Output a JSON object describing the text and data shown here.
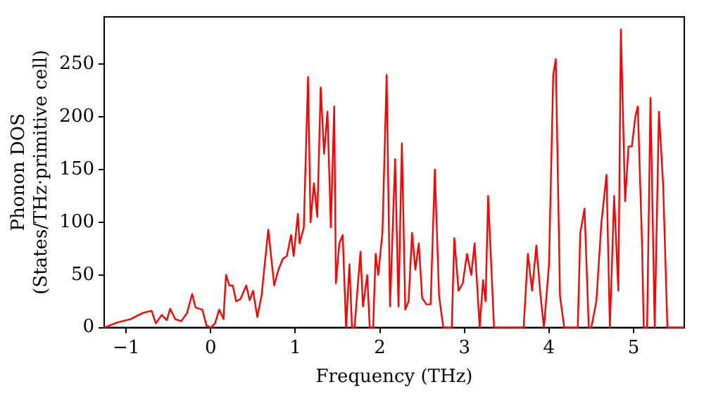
{
  "chart_data": {
    "type": "line",
    "xlabel": "Frequency (THz)",
    "ylabel": "Phonon DOS\n(States/THz·primitive cell)",
    "xlim": [
      -1.26,
      5.6
    ],
    "ylim": [
      0,
      295
    ],
    "xticks": [
      -1,
      0,
      1,
      2,
      3,
      4,
      5
    ],
    "yticks": [
      0,
      50,
      100,
      150,
      200,
      250
    ],
    "grid": false,
    "legend": false,
    "marker": "none",
    "line_style": "solid",
    "series": [
      {
        "color": "#ff0000",
        "x": [
          -1.26,
          -1.1,
          -0.95,
          -0.8,
          -0.7,
          -0.65,
          -0.58,
          -0.52,
          -0.48,
          -0.42,
          -0.35,
          -0.28,
          -0.22,
          -0.18,
          -0.1,
          -0.05,
          0.0,
          0.05,
          0.1,
          0.15,
          0.18,
          0.22,
          0.26,
          0.3,
          0.35,
          0.42,
          0.46,
          0.5,
          0.55,
          0.6,
          0.68,
          0.75,
          0.8,
          0.85,
          0.9,
          0.95,
          0.98,
          1.03,
          1.05,
          1.1,
          1.15,
          1.18,
          1.22,
          1.26,
          1.3,
          1.34,
          1.38,
          1.42,
          1.46,
          1.48,
          1.52,
          1.56,
          1.6,
          1.64,
          1.67,
          1.7,
          1.77,
          1.8,
          1.85,
          1.88,
          1.92,
          1.95,
          1.98,
          2.03,
          2.08,
          2.12,
          2.18,
          2.22,
          2.26,
          2.3,
          2.34,
          2.38,
          2.42,
          2.46,
          2.5,
          2.55,
          2.6,
          2.65,
          2.7,
          2.75,
          2.85,
          2.88,
          2.93,
          2.98,
          3.03,
          3.08,
          3.12,
          3.18,
          3.22,
          3.25,
          3.28,
          3.35,
          3.7,
          3.75,
          3.8,
          3.85,
          3.9,
          3.94,
          4.0,
          4.05,
          4.08,
          4.13,
          4.18,
          4.34,
          4.37,
          4.42,
          4.47,
          4.5,
          4.56,
          4.62,
          4.68,
          4.72,
          4.77,
          4.82,
          4.85,
          4.9,
          4.94,
          4.98,
          5.02,
          5.05,
          5.1,
          5.12,
          5.16,
          5.2,
          5.25,
          5.3,
          5.35,
          5.4,
          5.6
        ],
        "values": [
          0,
          5,
          8,
          14,
          16,
          4,
          12,
          7,
          18,
          8,
          6,
          14,
          32,
          19,
          17,
          2,
          0,
          4,
          17,
          8,
          50,
          40,
          40,
          25,
          27,
          40,
          26,
          35,
          10,
          30,
          93,
          40,
          55,
          65,
          68,
          88,
          68,
          108,
          80,
          95,
          238,
          100,
          137,
          105,
          228,
          165,
          205,
          95,
          210,
          42,
          80,
          88,
          0,
          60,
          0,
          0,
          72,
          20,
          50,
          0,
          0,
          70,
          50,
          90,
          240,
          20,
          160,
          20,
          175,
          17,
          25,
          90,
          55,
          80,
          28,
          22,
          22,
          150,
          30,
          0,
          0,
          85,
          35,
          42,
          70,
          50,
          80,
          0,
          45,
          25,
          125,
          0,
          0,
          70,
          35,
          78,
          30,
          0,
          60,
          240,
          255,
          30,
          0,
          0,
          90,
          113,
          0,
          0,
          25,
          100,
          145,
          0,
          125,
          35,
          283,
          120,
          172,
          172,
          200,
          210,
          80,
          0,
          0,
          218,
          0,
          205,
          135,
          0,
          0
        ]
      }
    ]
  }
}
